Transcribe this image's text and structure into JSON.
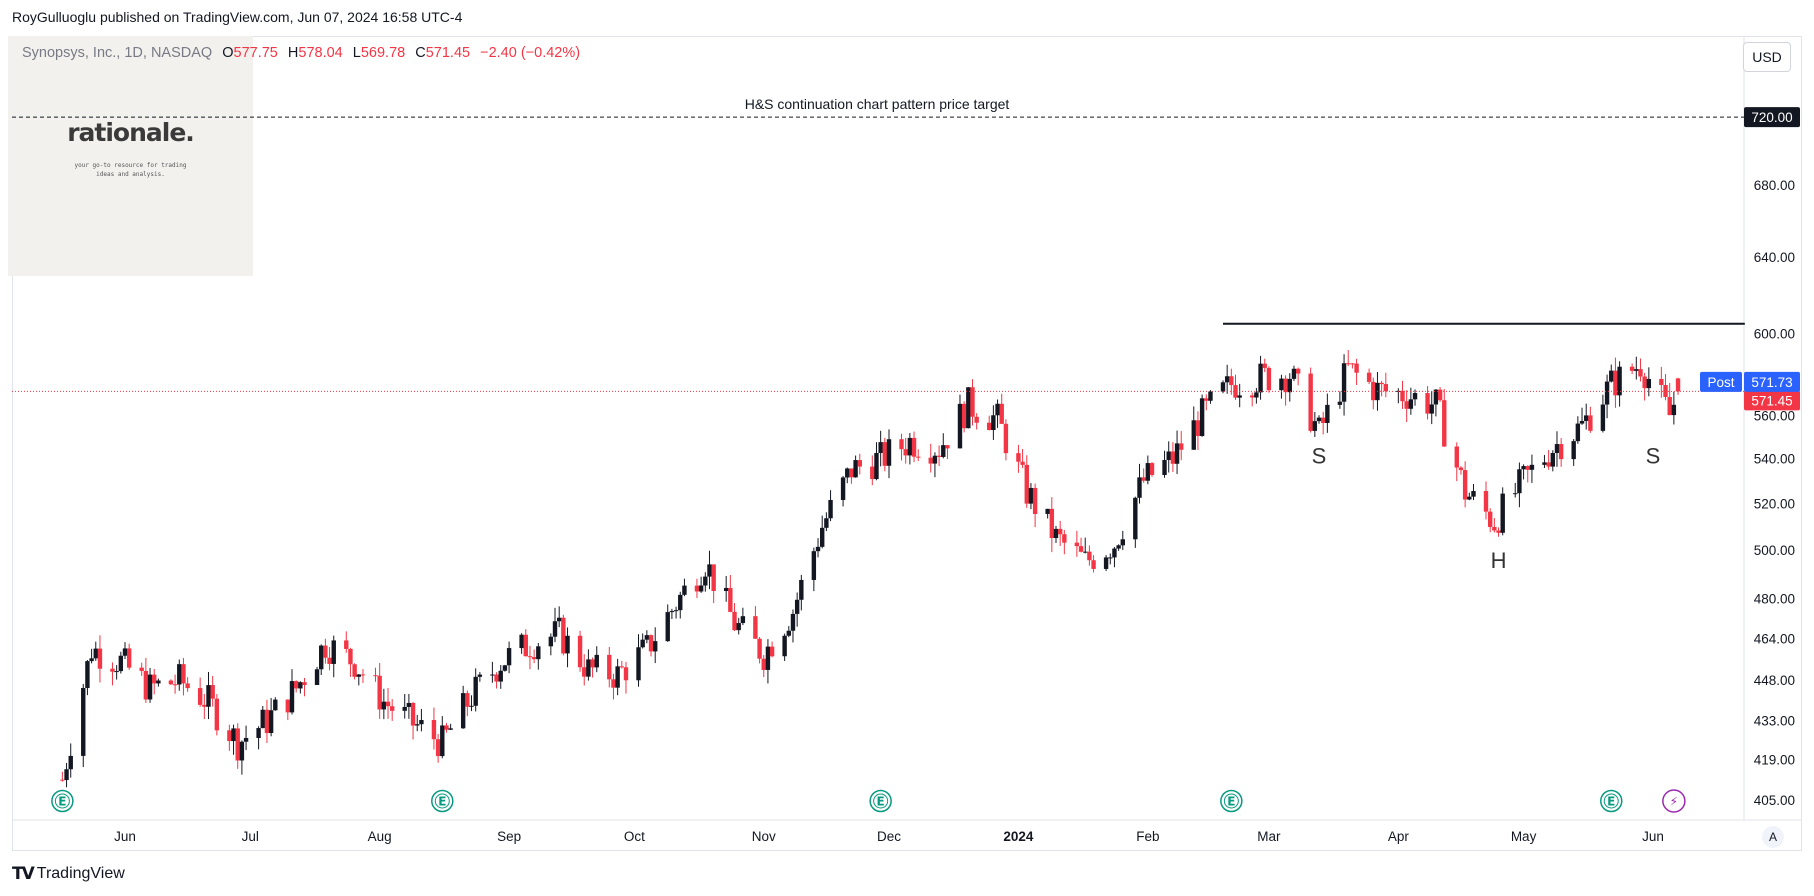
{
  "publish_line": "RoyGulluoglu published on TradingView.com, Jun 07, 2024 16:58 UTC-4",
  "symbol": {
    "name": "Synopsys, Inc., 1D, NASDAQ",
    "open_label": "O",
    "open": "577.75",
    "high_label": "H",
    "high": "578.04",
    "low_label": "L",
    "low": "569.78",
    "close_label": "C",
    "close": "571.45",
    "change": "−2.40 (−0.42%)"
  },
  "currency": "USD",
  "logo": {
    "text": "rationale.",
    "tagline": "your go-to resource for trading\nideas and analysis."
  },
  "brand": {
    "icon": "tradingview-logo-icon",
    "name": "TradingView"
  },
  "scale_button": "A",
  "colors": {
    "up": "#131722",
    "down": "#f23645",
    "post_badge": "#2962ff",
    "price_badge": "#f23645",
    "target_badge": "#131722",
    "earnings": "#089981",
    "dividend": "#9c27b0"
  },
  "chart_data": {
    "type": "candlestick",
    "scale": "log",
    "ylim": [
      400,
      780
    ],
    "y_ticks": [
      405,
      419,
      433,
      448,
      464,
      480,
      500,
      520,
      540,
      560,
      600,
      640,
      680
    ],
    "y_tick_labels": [
      "405.00",
      "419.00",
      "433.00",
      "448.00",
      "464.00",
      "480.00",
      "500.00",
      "520.00",
      "540.00",
      "560.00",
      "600.00",
      "640.00",
      "680.00"
    ],
    "x_ticks": [
      "2023-06-01",
      "2023-07-01",
      "2023-08-01",
      "2023-09-01",
      "2023-10-01",
      "2023-11-01",
      "2023-12-01",
      "2024-01-01",
      "2024-02-01",
      "2024-03-01",
      "2024-04-01",
      "2024-05-01",
      "2024-06-01"
    ],
    "x_tick_labels": [
      "Jun",
      "Jul",
      "Aug",
      "Sep",
      "Oct",
      "Nov",
      "Dec",
      "2024",
      "Feb",
      "Mar",
      "Apr",
      "May",
      "Jun"
    ],
    "x_range": [
      "2023-05-09",
      "2024-07-01"
    ],
    "price_target": {
      "value": 720.0,
      "label": "H&S continuation chart pattern price target",
      "badge": "720.00"
    },
    "neckline": {
      "value": 605,
      "from": "2024-02-19",
      "to": "2024-06-23"
    },
    "pattern_labels": [
      {
        "text": "S",
        "date": "2024-03-13",
        "price": 546
      },
      {
        "text": "H",
        "date": "2024-04-25",
        "price": 500
      },
      {
        "text": "S",
        "date": "2024-06-01",
        "price": 546
      }
    ],
    "last_price": {
      "value": 571.45,
      "label": "571.45"
    },
    "post_price": {
      "tag": "Post",
      "value": 571.73,
      "label": "571.73"
    },
    "events": [
      {
        "type": "earnings",
        "label": "E",
        "date": "2023-05-17"
      },
      {
        "type": "earnings",
        "label": "E",
        "date": "2023-08-16"
      },
      {
        "type": "earnings",
        "label": "E",
        "date": "2023-11-29"
      },
      {
        "type": "earnings",
        "label": "E",
        "date": "2024-02-21"
      },
      {
        "type": "earnings",
        "label": "E",
        "date": "2024-05-22"
      },
      {
        "type": "dividend",
        "label": "⚡",
        "date": "2024-06-06"
      }
    ],
    "closes": [
      [
        "2023-05-17",
        412
      ],
      [
        "2023-05-24",
        460
      ],
      [
        "2023-05-31",
        455
      ],
      [
        "2023-06-07",
        445
      ],
      [
        "2023-06-14",
        448
      ],
      [
        "2023-06-21",
        440
      ],
      [
        "2023-06-28",
        425
      ],
      [
        "2023-07-05",
        433
      ],
      [
        "2023-07-12",
        445
      ],
      [
        "2023-07-19",
        462
      ],
      [
        "2023-07-26",
        455
      ],
      [
        "2023-08-02",
        440
      ],
      [
        "2023-08-09",
        432
      ],
      [
        "2023-08-16",
        425
      ],
      [
        "2023-08-23",
        442
      ],
      [
        "2023-08-30",
        455
      ],
      [
        "2023-09-06",
        462
      ],
      [
        "2023-09-13",
        466
      ],
      [
        "2023-09-20",
        452
      ],
      [
        "2023-09-27",
        450
      ],
      [
        "2023-10-04",
        460
      ],
      [
        "2023-10-11",
        478
      ],
      [
        "2023-10-18",
        495
      ],
      [
        "2023-10-25",
        470
      ],
      [
        "2023-11-01",
        458
      ],
      [
        "2023-11-08",
        475
      ],
      [
        "2023-11-15",
        510
      ],
      [
        "2023-11-22",
        535
      ],
      [
        "2023-11-29",
        540
      ],
      [
        "2023-12-06",
        548
      ],
      [
        "2023-12-13",
        545
      ],
      [
        "2023-12-20",
        565
      ],
      [
        "2023-12-27",
        558
      ],
      [
        "2024-01-03",
        525
      ],
      [
        "2024-01-10",
        505
      ],
      [
        "2024-01-17",
        495
      ],
      [
        "2024-01-24",
        503
      ],
      [
        "2024-01-31",
        530
      ],
      [
        "2024-02-07",
        540
      ],
      [
        "2024-02-14",
        560
      ],
      [
        "2024-02-21",
        575
      ],
      [
        "2024-02-28",
        578
      ],
      [
        "2024-03-06",
        580
      ],
      [
        "2024-03-13",
        552
      ],
      [
        "2024-03-20",
        582
      ],
      [
        "2024-03-27",
        572
      ],
      [
        "2024-04-03",
        570
      ],
      [
        "2024-04-10",
        565
      ],
      [
        "2024-04-17",
        525
      ],
      [
        "2024-04-24",
        512
      ],
      [
        "2024-05-01",
        530
      ],
      [
        "2024-05-08",
        545
      ],
      [
        "2024-05-15",
        555
      ],
      [
        "2024-05-22",
        575
      ],
      [
        "2024-05-29",
        585
      ],
      [
        "2024-06-05",
        560
      ],
      [
        "2024-06-07",
        571.45
      ]
    ]
  }
}
